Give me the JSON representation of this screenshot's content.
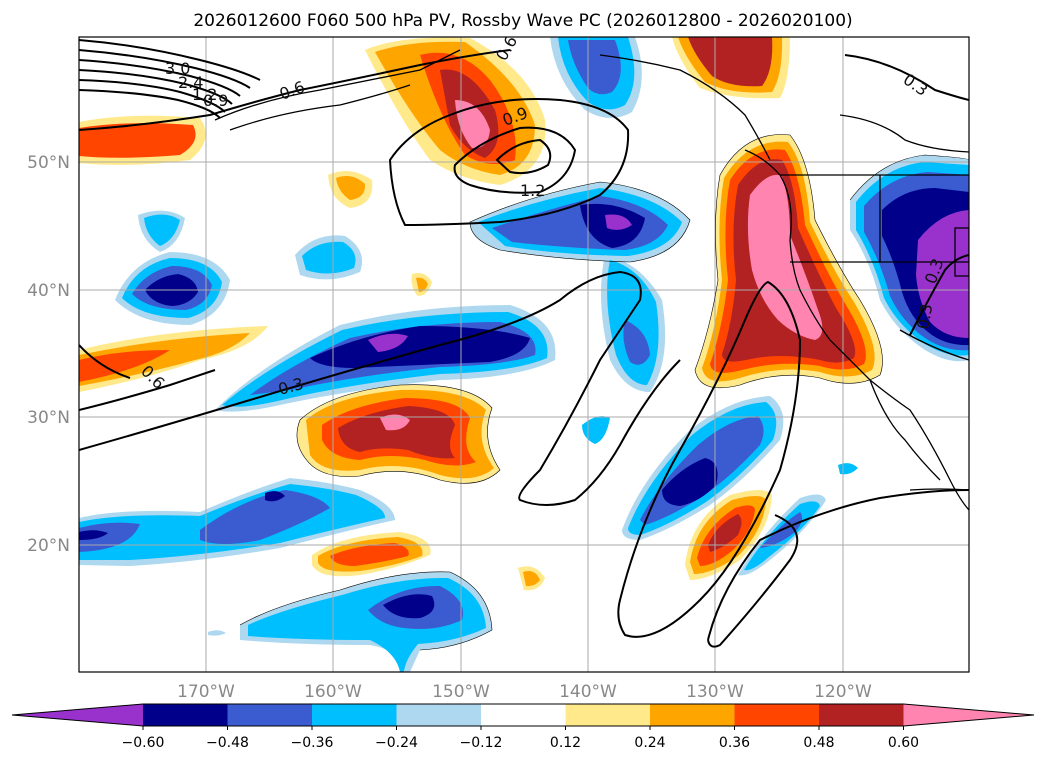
{
  "title": "2026012600 F060 500 hPa PV, Rossby Wave PC (2026012800 - 2026020100)",
  "map": {
    "lat_labels": [
      "50°N",
      "40°N",
      "30°N",
      "20°N"
    ],
    "lon_labels": [
      "170°W",
      "160°W",
      "150°W",
      "140°W",
      "130°W",
      "120°W"
    ],
    "contour_labels": [
      "3.0",
      "2.4",
      "1.2",
      "0.9",
      "0.6",
      "0.6",
      "0.9",
      "1.2",
      "0.3",
      "0.6",
      "0.3",
      "0.3",
      "0.3"
    ]
  },
  "colorbar": {
    "ticks": [
      "−0.60",
      "−0.48",
      "−0.36",
      "−0.24",
      "−0.12",
      "0.12",
      "0.24",
      "0.36",
      "0.48",
      "0.60"
    ],
    "colors": [
      "#9932cc",
      "#00008b",
      "#3b5bd1",
      "#00bfff",
      "#add8f0",
      "#ffffff",
      "#ffe98a",
      "#ffa500",
      "#ff4500",
      "#b22222",
      "#ff85b0"
    ]
  }
}
